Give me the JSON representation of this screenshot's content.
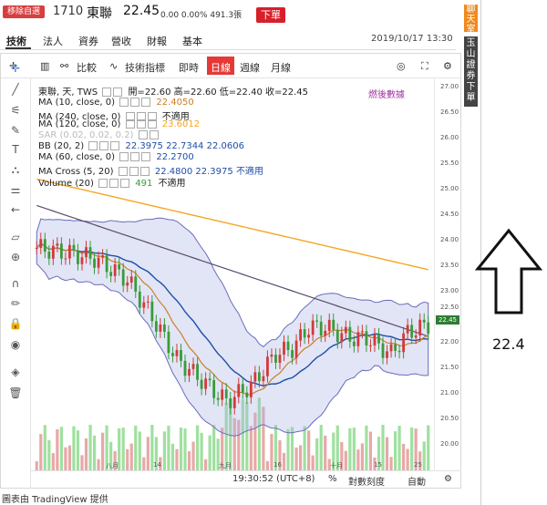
{
  "header": {
    "remove_label": "移除自選",
    "code": "1710",
    "name": "東聯",
    "price": "22.45",
    "change": "0.00 0.00% 491.3張",
    "order_label": "下單"
  },
  "tabs": [
    {
      "label": "技術"
    },
    {
      "label": "法人"
    },
    {
      "label": "資券"
    },
    {
      "label": "營收"
    },
    {
      "label": "財報"
    },
    {
      "label": "基本"
    }
  ],
  "datetime": "2019/10/17 13:30",
  "side": {
    "chatroom": "聊天室",
    "ad": "玉山證券下單"
  },
  "toolbar": {
    "compare": "比較",
    "indicators": "技術指標",
    "realtime": "即時",
    "daily": "日線",
    "weekly": "週線",
    "monthly": "月線"
  },
  "legend": {
    "ohlc_title": "東聯, 天, TWS",
    "ohlc_values": "開=22.60 高=22.60 低=22.40 收=22.45",
    "ma10": {
      "label": "MA (10, close, 0)",
      "value": "22.4050"
    },
    "ma240": {
      "label": "MA (240, close, 0)",
      "value": "不適用"
    },
    "ma120": {
      "label": "MA (120, close, 0)",
      "value": "23.6012"
    },
    "sar": {
      "label": "SAR (0.02, 0.02, 0.2)"
    },
    "bb": {
      "label": "BB (20, 2)",
      "value": "22.3975  22.7344  22.0606"
    },
    "ma60": {
      "label": "MA (60, close, 0)",
      "value": "22.2700"
    },
    "macross": {
      "label": "MA Cross (5, 20)",
      "value": "22.4800  22.3975  不適用"
    },
    "volume": {
      "label": "Volume (20)",
      "value": "491",
      "value2": "不適用"
    }
  },
  "watermark": "燃後數據",
  "price_axis": [
    "27.00",
    "26.50",
    "26.00",
    "25.50",
    "25.00",
    "24.50",
    "24.00",
    "23.50",
    "23.00",
    "22.50",
    "22.00",
    "21.50",
    "21.00",
    "20.50",
    "20.00"
  ],
  "last_price_tag": "22.45",
  "x_axis": [
    "八月",
    "14",
    "九月",
    "16",
    "十月",
    "15",
    "25"
  ],
  "bottom": {
    "time": "19:30:52 (UTC+8)",
    "percent": "%",
    "log": "對數刻度",
    "auto": "自動"
  },
  "annotation_price": "22.4",
  "credit": "圖表由 TradingView 提供",
  "colors": {
    "up": "#d13a3a",
    "down": "#3a9a3a",
    "ma10": "#c9802a",
    "ma60": "#1f4ea8",
    "ma120": "#f5a623",
    "bb": "#6b6bbd",
    "sell_red": "#d6202a",
    "chat": "#f08a1e"
  }
}
